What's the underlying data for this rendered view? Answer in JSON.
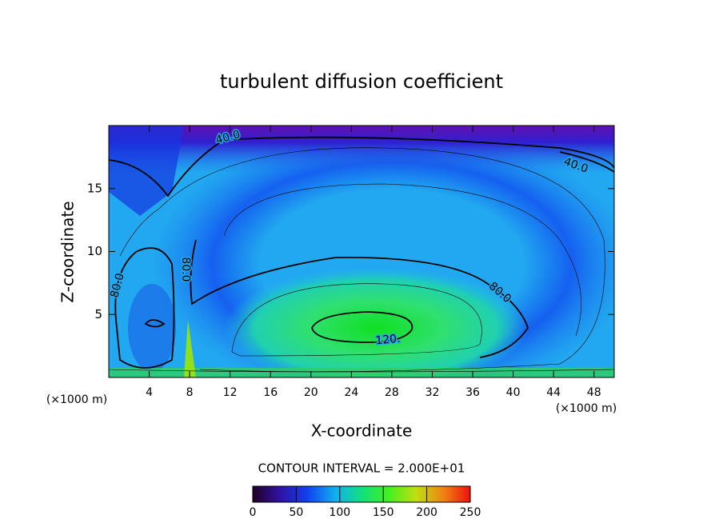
{
  "chart_data": {
    "type": "contour",
    "title": "turbulent diffusion coefficient",
    "x_label": "X-coordinate",
    "y_label": "Z-coordinate",
    "x_units": [
      "(×1000 m)",
      "(×1000 m)"
    ],
    "xlim": [
      0,
      50
    ],
    "ylim": [
      0,
      20
    ],
    "xticks": [
      4,
      8,
      12,
      16,
      20,
      24,
      28,
      32,
      36,
      40,
      44,
      48
    ],
    "yticks": [
      5,
      10,
      15
    ],
    "contour_interval": "CONTOUR INTERVAL = 2.000E+01",
    "contour_labels": [
      {
        "value": 40,
        "label": "40.0"
      },
      {
        "value": 40,
        "label": "40.0"
      },
      {
        "value": 80,
        "label": "80.0"
      },
      {
        "value": 80,
        "label": "80.0"
      },
      {
        "value": 80,
        "label": "80.0"
      },
      {
        "value": 120,
        "label": "120."
      }
    ],
    "colorbar": {
      "lim": [
        0,
        250
      ],
      "ticks": [
        0,
        50,
        100,
        150,
        200,
        250
      ]
    }
  }
}
